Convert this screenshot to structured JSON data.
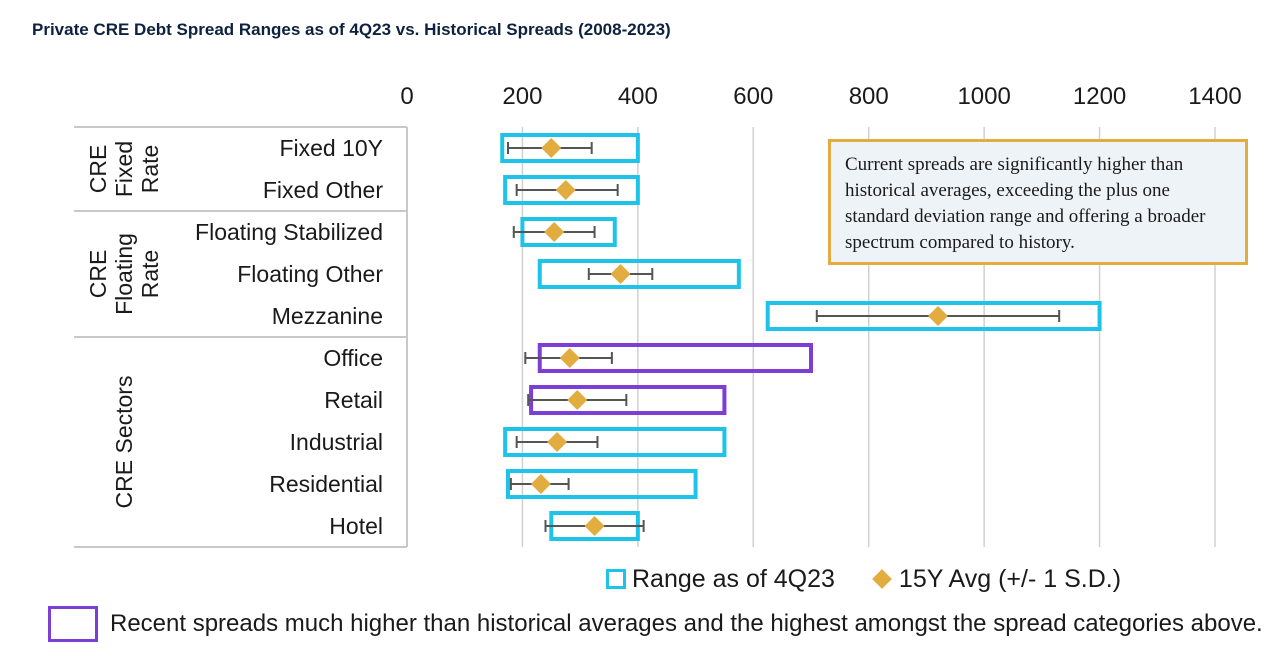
{
  "title": "Private CRE Debt Spread Ranges as of 4Q23 vs. Historical Spreads (2008-2023)",
  "colors": {
    "range_box": "#1ec3ea",
    "highlight_box": "#7d3ed6",
    "avg_marker": "#e3ac3f",
    "error_bar": "#555555",
    "annotation_border": "#e3ac3f",
    "annotation_fill": "#eef3f8",
    "gridline": "#d0d0d0"
  },
  "annotation": "Current spreads are significantly higher than historical averages, exceeding the plus one standard deviation range and offering a broader spectrum compared to history.",
  "legend": {
    "range": "Range as of 4Q23",
    "avg": "15Y Avg (+/- 1 S.D.)"
  },
  "note": "Recent spreads much higher than historical averages and the highest amongst the spread categories above.",
  "chart_data": {
    "type": "bar",
    "x_ticks": [
      "0",
      "200",
      "400",
      "600",
      "800",
      "1000",
      "1200",
      "1400"
    ],
    "xlim": [
      0,
      1400
    ],
    "grid": true,
    "legend_position": "bottom",
    "groups": [
      {
        "label_lines": [
          "CRE",
          "Fixed",
          "Rate"
        ],
        "categories": [
          "Fixed 10Y",
          "Fixed Other"
        ]
      },
      {
        "label_lines": [
          "CRE",
          "Floating",
          "Rate"
        ],
        "categories": [
          "Floating Stabilized",
          "Floating Other",
          "Mezzanine"
        ]
      },
      {
        "label_lines": [
          "CRE Sectors"
        ],
        "categories": [
          "Office",
          "Retail",
          "Industrial",
          "Residential",
          "Hotel"
        ]
      }
    ],
    "categories": [
      "Fixed 10Y",
      "Fixed Other",
      "Floating Stabilized",
      "Floating Other",
      "Mezzanine",
      "Office",
      "Retail",
      "Industrial",
      "Residential",
      "Hotel"
    ],
    "series": [
      {
        "name": "Range as of 4Q23",
        "low": [
          165,
          170,
          200,
          230,
          625,
          230,
          215,
          170,
          175,
          250
        ],
        "high": [
          400,
          400,
          360,
          575,
          1200,
          700,
          550,
          550,
          500,
          400
        ]
      },
      {
        "name": "15Y Avg (+/- 1 S.D.)",
        "values": [
          250,
          275,
          255,
          370,
          920,
          282,
          295,
          260,
          232,
          325
        ],
        "sd_low": [
          175,
          190,
          185,
          315,
          710,
          205,
          210,
          190,
          180,
          240
        ],
        "sd_high": [
          320,
          365,
          325,
          425,
          1130,
          355,
          380,
          330,
          280,
          410
        ]
      }
    ],
    "highlighted": [
      "Office",
      "Retail"
    ]
  }
}
